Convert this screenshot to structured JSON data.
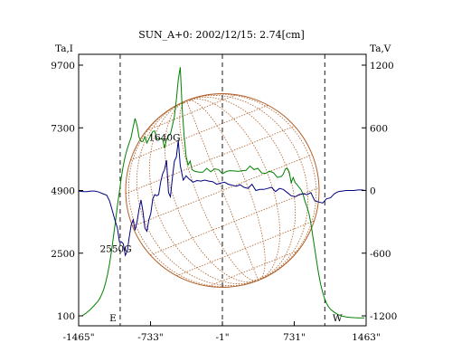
{
  "chart_data": {
    "type": "line",
    "title": "SUN_A+0: 2002/12/15: 2.74[cm]",
    "ylabel_left": "Ta,I",
    "ylabel_right": "Ta,V",
    "xlim": [
      -1465,
      1463
    ],
    "ylim_left": [
      100,
      9700
    ],
    "ylim_right": [
      -1200,
      1200
    ],
    "x_tick_labels": [
      {
        "x": -1465,
        "label": "-1465\""
      },
      {
        "x": -733,
        "label": "-733\""
      },
      {
        "x": -1,
        "label": "-1\""
      },
      {
        "x": 731,
        "label": "731\""
      },
      {
        "x": 1463,
        "label": "1463\""
      }
    ],
    "y_left_ticks": [
      9700,
      7300,
      4900,
      2500,
      100
    ],
    "y_right_ticks": [
      1200,
      600,
      0,
      -600,
      -1200
    ],
    "vertical_markers": [
      -1042,
      -1,
      1042
    ],
    "marker_labels": [
      {
        "x": -1042,
        "label": "E"
      },
      {
        "x": 1042,
        "label": "W"
      }
    ],
    "annotations": [
      {
        "x": -591,
        "y": 6800,
        "label": "1640G"
      },
      {
        "x": -1087,
        "y": 2550,
        "label": "2550G"
      }
    ],
    "disk": {
      "center_x": -1,
      "center_y": 4900,
      "radius_arcsec": 985,
      "color": "#b0602a",
      "grid": true
    },
    "series": [
      {
        "axis": "left",
        "color": "#008000",
        "x": [
          -1430,
          -1390,
          -1350,
          -1310,
          -1270,
          -1250,
          -1230,
          -1210,
          -1190,
          -1170,
          -1150,
          -1130,
          -1110,
          -1090,
          -1070,
          -1050,
          -1030,
          -1010,
          -990,
          -970,
          -950,
          -930,
          -910,
          -890,
          -870,
          -850,
          -830,
          -810,
          -790,
          -770,
          -750,
          -730,
          -710,
          -690,
          -670,
          -650,
          -630,
          -610,
          -590,
          -570,
          -550,
          -530,
          -510,
          -490,
          -470,
          -450,
          -430,
          -410,
          -390,
          -370,
          -350,
          -330,
          -310,
          -280,
          -240,
          -200,
          -160,
          -120,
          -80,
          -40,
          0,
          40,
          80,
          120,
          160,
          200,
          240,
          280,
          320,
          360,
          400,
          440,
          480,
          520,
          560,
          600,
          620,
          640,
          660,
          680,
          700,
          720,
          740,
          760,
          780,
          800,
          820,
          840,
          860,
          880,
          900,
          920,
          940,
          960,
          980,
          1000,
          1020,
          1040,
          1060,
          1080,
          1100,
          1140,
          1180,
          1220,
          1260,
          1300,
          1340,
          1380,
          1420,
          1445
        ],
        "y": [
          100,
          200,
          330,
          480,
          650,
          770,
          920,
          1110,
          1380,
          1690,
          2100,
          2590,
          3160,
          3710,
          4320,
          4860,
          5400,
          5860,
          6220,
          6500,
          6720,
          6940,
          7330,
          7660,
          7400,
          6940,
          6780,
          6780,
          6960,
          6720,
          6880,
          7010,
          7160,
          7180,
          6860,
          6880,
          6880,
          6860,
          6520,
          6840,
          7000,
          7060,
          7380,
          7730,
          8380,
          9150,
          9620,
          8000,
          6940,
          6200,
          5880,
          6030,
          5700,
          5630,
          5600,
          5600,
          5750,
          5620,
          5730,
          5700,
          5540,
          5630,
          5660,
          5650,
          5630,
          5660,
          5670,
          5840,
          5700,
          5750,
          5570,
          5560,
          5640,
          5580,
          5400,
          5440,
          5530,
          5720,
          5750,
          5600,
          5200,
          5400,
          5200,
          5130,
          5020,
          4930,
          4760,
          4490,
          4280,
          4030,
          3640,
          3160,
          2660,
          2160,
          1700,
          1310,
          1000,
          760,
          580,
          450,
          350,
          230,
          140,
          90,
          60,
          40,
          30,
          25,
          20,
          20
        ]
      },
      {
        "axis": "right",
        "color": "#000080",
        "x": [
          -1460,
          -1420,
          -1380,
          -1340,
          -1300,
          -1260,
          -1220,
          -1180,
          -1150,
          -1120,
          -1090,
          -1070,
          -1050,
          -1030,
          -1010,
          -990,
          -970,
          -950,
          -930,
          -910,
          -890,
          -870,
          -850,
          -830,
          -810,
          -790,
          -770,
          -750,
          -730,
          -710,
          -690,
          -670,
          -650,
          -630,
          -610,
          -590,
          -570,
          -550,
          -530,
          -510,
          -490,
          -470,
          -450,
          -430,
          -400,
          -370,
          -340,
          -300,
          -260,
          -220,
          -180,
          -140,
          -100,
          -60,
          -20,
          20,
          60,
          100,
          140,
          180,
          220,
          260,
          300,
          340,
          380,
          420,
          460,
          500,
          540,
          580,
          620,
          660,
          700,
          740,
          780,
          820,
          860,
          900,
          940,
          980,
          1020,
          1060,
          1100,
          1140,
          1180,
          1220,
          1260,
          1300,
          1340,
          1380,
          1420,
          1455
        ],
        "y": [
          -5,
          -10,
          -10,
          -5,
          -5,
          -15,
          -30,
          -45,
          -100,
          -200,
          -300,
          -360,
          -490,
          -490,
          -510,
          -620,
          -580,
          -450,
          -330,
          -280,
          -380,
          -300,
          -180,
          -90,
          -200,
          -360,
          -390,
          -280,
          -220,
          -80,
          -40,
          -50,
          -40,
          80,
          160,
          200,
          290,
          -20,
          -60,
          120,
          280,
          320,
          480,
          240,
          100,
          140,
          110,
          80,
          95,
          90,
          100,
          90,
          85,
          60,
          70,
          80,
          60,
          50,
          40,
          55,
          30,
          20,
          60,
          0,
          10,
          10,
          20,
          30,
          -10,
          20,
          10,
          -20,
          -50,
          -60,
          -40,
          -30,
          -40,
          -20,
          -100,
          -110,
          -120,
          -80,
          -70,
          -30,
          -10,
          -5,
          0,
          0,
          0,
          5,
          5,
          0
        ]
      }
    ]
  }
}
